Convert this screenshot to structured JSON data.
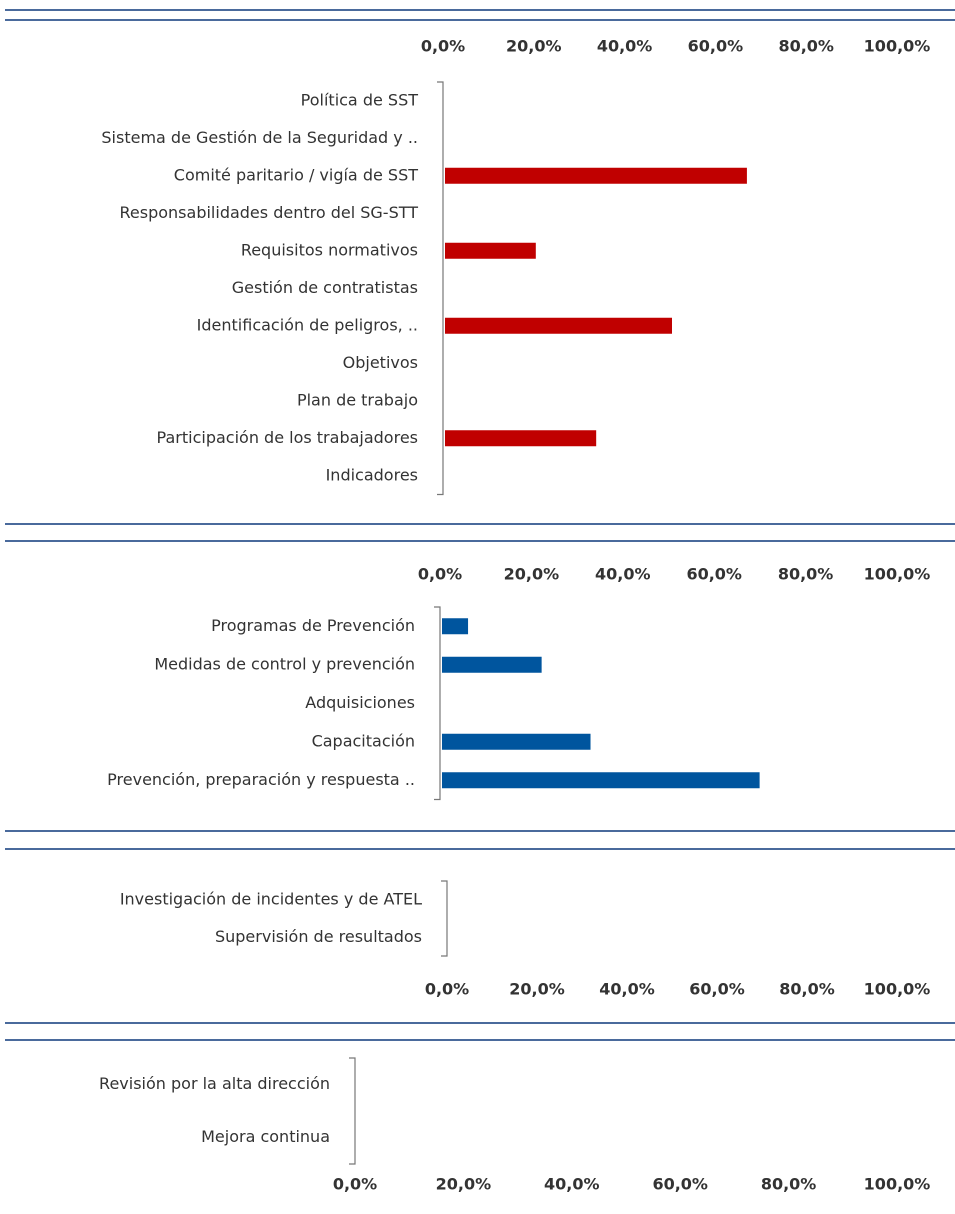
{
  "chart_data": [
    {
      "type": "bar",
      "orientation": "horizontal",
      "axis_position": "top",
      "color": "#c00000",
      "categories": [
        "Política de SST",
        "Sistema de Gestión de la Seguridad y ..",
        "Comité paritario / vigía de SST",
        "Responsabilidades dentro del SG-STT",
        "Requisitos normativos",
        "Gestión de contratistas",
        "Identificación de peligros, ..",
        "Objetivos",
        "Plan de trabajo",
        "Participación de los trabajadores",
        "Indicadores"
      ],
      "values": [
        0,
        0,
        66.5,
        0,
        20,
        0,
        50,
        0,
        0,
        33.3,
        0
      ],
      "xlim": [
        0,
        100
      ],
      "xticks": [
        {
          "value": 0,
          "label": "0,0%"
        },
        {
          "value": 20,
          "label": "20,0%"
        },
        {
          "value": 40,
          "label": "40,0%"
        },
        {
          "value": 60,
          "label": "60,0%"
        },
        {
          "value": 80,
          "label": "80,0%"
        },
        {
          "value": 100,
          "label": "100,0%"
        }
      ]
    },
    {
      "type": "bar",
      "orientation": "horizontal",
      "axis_position": "top",
      "color": "#00559e",
      "categories": [
        "Programas de Prevención",
        "Medidas de control y prevención",
        "Adquisiciones",
        "Capacitación",
        "Prevención, preparación y respuesta .."
      ],
      "values": [
        5.7,
        21.8,
        0,
        32.5,
        69.5
      ],
      "xlim": [
        0,
        100
      ],
      "xticks": [
        {
          "value": 0,
          "label": "0,0%"
        },
        {
          "value": 20,
          "label": "20,0%"
        },
        {
          "value": 40,
          "label": "40,0%"
        },
        {
          "value": 60,
          "label": "60,0%"
        },
        {
          "value": 80,
          "label": "80,0%"
        },
        {
          "value": 100,
          "label": "100,0%"
        }
      ]
    },
    {
      "type": "bar",
      "orientation": "horizontal",
      "axis_position": "bottom",
      "color": "#00559e",
      "categories": [
        "Investigación de incidentes y de ATEL",
        "Supervisión de resultados"
      ],
      "values": [
        0,
        0
      ],
      "xlim": [
        0,
        100
      ],
      "xticks": [
        {
          "value": 0,
          "label": "0,0%"
        },
        {
          "value": 20,
          "label": "20,0%"
        },
        {
          "value": 40,
          "label": "40,0%"
        },
        {
          "value": 60,
          "label": "60,0%"
        },
        {
          "value": 80,
          "label": "80,0%"
        },
        {
          "value": 100,
          "label": "100,0%"
        }
      ]
    },
    {
      "type": "bar",
      "orientation": "horizontal",
      "axis_position": "bottom",
      "color": "#00559e",
      "categories": [
        "Revisión por la alta dirección",
        "Mejora continua"
      ],
      "values": [
        0,
        0
      ],
      "xlim": [
        0,
        100
      ],
      "xticks": [
        {
          "value": 0,
          "label": "0,0%"
        },
        {
          "value": 20,
          "label": "20,0%"
        },
        {
          "value": 40,
          "label": "40,0%"
        },
        {
          "value": 60,
          "label": "60,0%"
        },
        {
          "value": 80,
          "label": "80,0%"
        },
        {
          "value": 100,
          "label": "100,0%"
        }
      ]
    }
  ]
}
